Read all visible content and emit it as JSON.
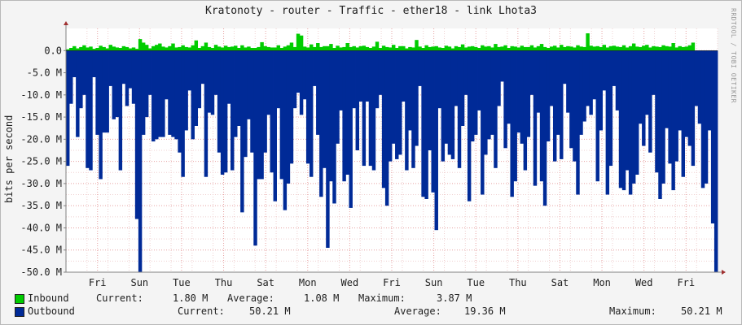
{
  "title": "Kratonoty - router - Traffic - ether18 - link Lhota3",
  "side_label": "RRDTOOL / TOBI OETIKER",
  "y_axis_label": "bits per second",
  "legend": [
    {
      "name": "Inbound",
      "color": "#00cc00",
      "current_label": "Current:",
      "current": "1.80 M",
      "average_label": "Average:",
      "average": "1.08 M",
      "maximum_label": "Maximum:",
      "maximum": "3.87 M"
    },
    {
      "name": "Outbound",
      "color": "#002a97",
      "current_label": "Current:",
      "current": "50.21 M",
      "average_label": "Average:",
      "average": "19.36 M",
      "maximum_label": "Maximum:",
      "maximum": "50.21 M"
    }
  ],
  "chart_data": {
    "type": "area",
    "title": "Kratonoty - router - Traffic - ether18 - link Lhota3",
    "ylabel": "bits per second",
    "ylim": [
      -50,
      5
    ],
    "y_unit": "M",
    "y_ticks": [
      "0.0",
      "-5.0 M",
      "-10.0 M",
      "-15.0 M",
      "-20.0 M",
      "-25.0 M",
      "-30.0 M",
      "-35.0 M",
      "-40.0 M",
      "-45.0 M",
      "-50.0 M"
    ],
    "y_tick_values": [
      0,
      -5,
      -10,
      -15,
      -20,
      -25,
      -30,
      -35,
      -40,
      -45,
      -50
    ],
    "x_tick_labels": [
      "Fri",
      "Sun",
      "Tue",
      "Thu",
      "Sat",
      "Mon",
      "Wed",
      "Fri",
      "Sun",
      "Tue",
      "Thu",
      "Sat",
      "Mon",
      "Wed",
      "Fri"
    ],
    "grid": true,
    "series": [
      {
        "name": "Inbound",
        "color": "#00cc00",
        "values": [
          0.3,
          0.6,
          1.0,
          0.5,
          0.8,
          1.2,
          0.7,
          0.9,
          0.4,
          0.6,
          1.1,
          0.8,
          0.5,
          1.3,
          0.9,
          0.7,
          0.6,
          1.0,
          0.8,
          0.5,
          0.7,
          0.4,
          2.6,
          1.8,
          1.3,
          0.5,
          1.0,
          1.3,
          1.6,
          0.9,
          0.7,
          1.0,
          1.6,
          0.7,
          0.8,
          1.2,
          0.8,
          0.7,
          1.2,
          2.3,
          0.6,
          1.0,
          1.8,
          0.8,
          0.6,
          1.3,
          0.9,
          0.7,
          1.1,
          0.8,
          0.9,
          1.1,
          0.6,
          1.2,
          0.7,
          0.9,
          0.6,
          0.6,
          0.8,
          1.9,
          1.0,
          0.8,
          0.7,
          0.7,
          1.2,
          0.6,
          0.9,
          1.2,
          1.8,
          0.8,
          3.8,
          3.4,
          0.9,
          0.7,
          1.4,
          0.8,
          1.7,
          0.8,
          1.0,
          1.0,
          1.5,
          0.6,
          1.1,
          0.7,
          0.8,
          1.7,
          0.8,
          1.0,
          0.7,
          1.0,
          1.1,
          0.8,
          0.6,
          0.9,
          2.0,
          0.6,
          1.1,
          0.8,
          0.7,
          1.3,
          0.6,
          1.0,
          1.0,
          0.5,
          0.8,
          0.7,
          2.4,
          0.9,
          0.6,
          1.2,
          0.8,
          0.9,
          1.0,
          0.7,
          0.6,
          1.1,
          0.9,
          0.5,
          1.0,
          0.8,
          1.4,
          0.7,
          0.9,
          1.0,
          0.8,
          0.6,
          1.2,
          0.9,
          1.0,
          0.7,
          1.5,
          0.8,
          0.9,
          1.2,
          0.6,
          1.0,
          0.9,
          0.7,
          1.1,
          0.8,
          0.8,
          1.2,
          0.7,
          1.0,
          1.5,
          0.8,
          0.6,
          0.9,
          1.1,
          0.7,
          1.3,
          0.8,
          1.0,
          0.9,
          0.7,
          1.2,
          0.9,
          0.8,
          3.9,
          1.1,
          0.9,
          1.0,
          0.8,
          1.3,
          0.7,
          1.0,
          1.1,
          0.9,
          0.8,
          1.2,
          0.7,
          1.0,
          1.6,
          0.9,
          0.8,
          1.1,
          1.3,
          0.7,
          1.0,
          0.9,
          0.8,
          1.2,
          1.0,
          0.9,
          1.7,
          0.7,
          1.0,
          0.8,
          0.9,
          1.2,
          1.8
        ]
      },
      {
        "name": "Outbound",
        "color": "#002a97",
        "values": [
          -26,
          -12,
          -6,
          -19.5,
          -13,
          -10,
          -26.5,
          -27,
          -6,
          -19,
          -29,
          -18.5,
          -18.5,
          -8,
          -15.5,
          -15,
          -27,
          -7.5,
          -12.5,
          -8.5,
          -12,
          -38,
          -50.2,
          -19,
          -15,
          -10,
          -20.5,
          -20,
          -19.5,
          -19.5,
          -11,
          -19,
          -19.5,
          -20,
          -23,
          -28.5,
          -18,
          -9,
          -20,
          -17,
          -13,
          -7.5,
          -28.5,
          -14,
          -14.5,
          -10,
          -23,
          -28,
          -27.5,
          -12,
          -27,
          -19.5,
          -17,
          -36.5,
          -24,
          -15.5,
          -23,
          -44,
          -29,
          -29,
          -23,
          -14.5,
          -27.5,
          -34,
          -13,
          -29,
          -36,
          -30,
          -25.5,
          -13,
          -9.5,
          -14.5,
          -11,
          -25.5,
          -28.5,
          -8,
          -19,
          -33,
          -26.5,
          -44.5,
          -29.5,
          -34.5,
          -21,
          -13.5,
          -29.5,
          -28,
          -35.5,
          -13,
          -22.5,
          -11.5,
          -26,
          -11.5,
          -26,
          -27,
          -13,
          -10,
          -31,
          -35,
          -25,
          -21,
          -24.5,
          -23.5,
          -11.5,
          -27,
          -18,
          -26.5,
          -21.5,
          -8,
          -33,
          -33.5,
          -22.5,
          -32,
          -40.5,
          -13,
          -25,
          -21,
          -23.5,
          -24.5,
          -12.5,
          -26.5,
          -17,
          -10,
          -34,
          -20.5,
          -19,
          -13.5,
          -32.5,
          -23.5,
          -20,
          -19,
          -26.5,
          -12.5,
          -7,
          -22,
          -16.5,
          -33,
          -29.5,
          -18.5,
          -21,
          -27,
          -19.5,
          -10,
          -30.5,
          -14,
          -29.5,
          -35,
          -20.5,
          -12.5,
          -25,
          -19,
          -24.5,
          -7.5,
          -14,
          -22,
          -25,
          -32.5,
          -19,
          -16,
          -12.5,
          -14.5,
          -11,
          -29.5,
          -18,
          -9,
          -32.5,
          -26,
          -8,
          -13.5,
          -31,
          -31.5,
          -27,
          -32.5,
          -30,
          -28,
          -16.5,
          -21.5,
          -14.5,
          -23,
          -10,
          -27.5,
          -33.5,
          -30,
          -17.5,
          -25.5,
          -31.5,
          -25,
          -18,
          -28.5,
          -19.5,
          -21.5,
          -26,
          -12.5,
          -16.5,
          -31,
          -30,
          -18,
          -39,
          -50.2
        ]
      }
    ]
  }
}
